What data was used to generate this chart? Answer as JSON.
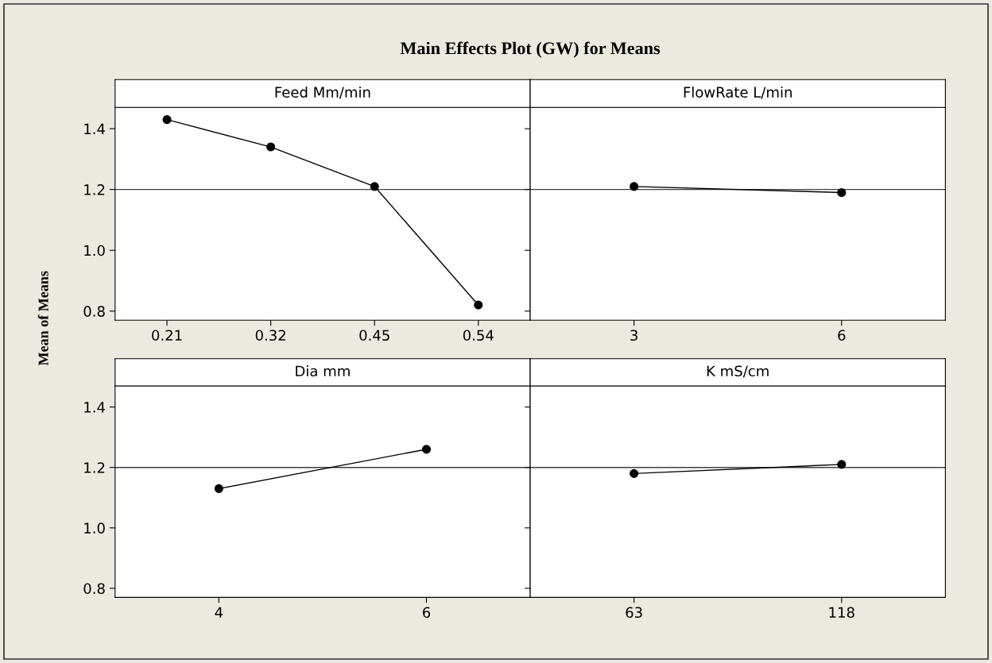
{
  "chart_data": [
    {
      "type": "line",
      "title": "Main Effects Plot (GW) for Means",
      "ylabel": "Mean of Means",
      "xlabel": "Feed Mm/min",
      "categories": [
        "0.21",
        "0.32",
        "0.45",
        "0.54"
      ],
      "series": [
        {
          "color": "#000000",
          "values": [
            1.43,
            1.34,
            1.21,
            0.82
          ]
        }
      ],
      "ylim": [
        0.77,
        1.47
      ],
      "yticks": [
        {
          "value": 0.8,
          "label": "0.8"
        },
        {
          "value": 1.0,
          "label": "1.0"
        },
        {
          "value": 1.2,
          "label": "1.2"
        },
        {
          "value": 1.4,
          "label": "1.4"
        }
      ],
      "ref_lines": [
        {
          "axis": "y",
          "value": 1.2,
          "color": "#404040"
        }
      ],
      "marker": "circle",
      "line_style": "solid",
      "grid": false,
      "legend": false
    },
    {
      "type": "line",
      "xlabel": "FlowRate L/min",
      "x": [
        3,
        6
      ],
      "xlim": [
        1.5,
        7.5
      ],
      "xticks": [
        3,
        6
      ],
      "series": [
        {
          "color": "#000000",
          "values": [
            1.21,
            1.19
          ]
        }
      ],
      "ylim": [
        0.77,
        1.47
      ],
      "yticks": [
        {
          "value": 0.8,
          "label": null
        },
        {
          "value": 1.0,
          "label": null
        },
        {
          "value": 1.2,
          "label": null
        },
        {
          "value": 1.4,
          "label": null
        }
      ],
      "tick_labels": "x",
      "ref_lines": [
        {
          "axis": "y",
          "value": 1.2,
          "color": "#404040"
        }
      ],
      "marker": "circle",
      "line_style": "solid",
      "grid": false,
      "legend": false
    },
    {
      "type": "line",
      "xlabel": "Dia mm",
      "x": [
        4,
        6
      ],
      "xlim": [
        3,
        7
      ],
      "xticks": [
        4,
        6
      ],
      "series": [
        {
          "color": "#000000",
          "values": [
            1.13,
            1.26
          ]
        }
      ],
      "ylim": [
        0.77,
        1.47
      ],
      "yticks": [
        {
          "value": 0.8,
          "label": "0.8"
        },
        {
          "value": 1.0,
          "label": "1.0"
        },
        {
          "value": 1.2,
          "label": "1.2"
        },
        {
          "value": 1.4,
          "label": "1.4"
        }
      ],
      "ref_lines": [
        {
          "axis": "y",
          "value": 1.2,
          "color": "#404040"
        }
      ],
      "marker": "circle",
      "line_style": "solid",
      "grid": false,
      "legend": false
    },
    {
      "type": "line",
      "xlabel": "K mS/cm",
      "x": [
        63,
        118
      ],
      "xlim": [
        35.5,
        145.5
      ],
      "xticks": [
        63,
        118
      ],
      "series": [
        {
          "color": "#000000",
          "values": [
            1.18,
            1.21
          ]
        }
      ],
      "ylim": [
        0.77,
        1.47
      ],
      "yticks": [
        {
          "value": 0.8,
          "label": null
        },
        {
          "value": 1.0,
          "label": null
        },
        {
          "value": 1.2,
          "label": null
        },
        {
          "value": 1.4,
          "label": null
        }
      ],
      "tick_labels": "x",
      "ref_lines": [
        {
          "axis": "y",
          "value": 1.2,
          "color": "#404040"
        }
      ],
      "marker": "circle",
      "line_style": "solid",
      "grid": false,
      "legend": false
    }
  ]
}
